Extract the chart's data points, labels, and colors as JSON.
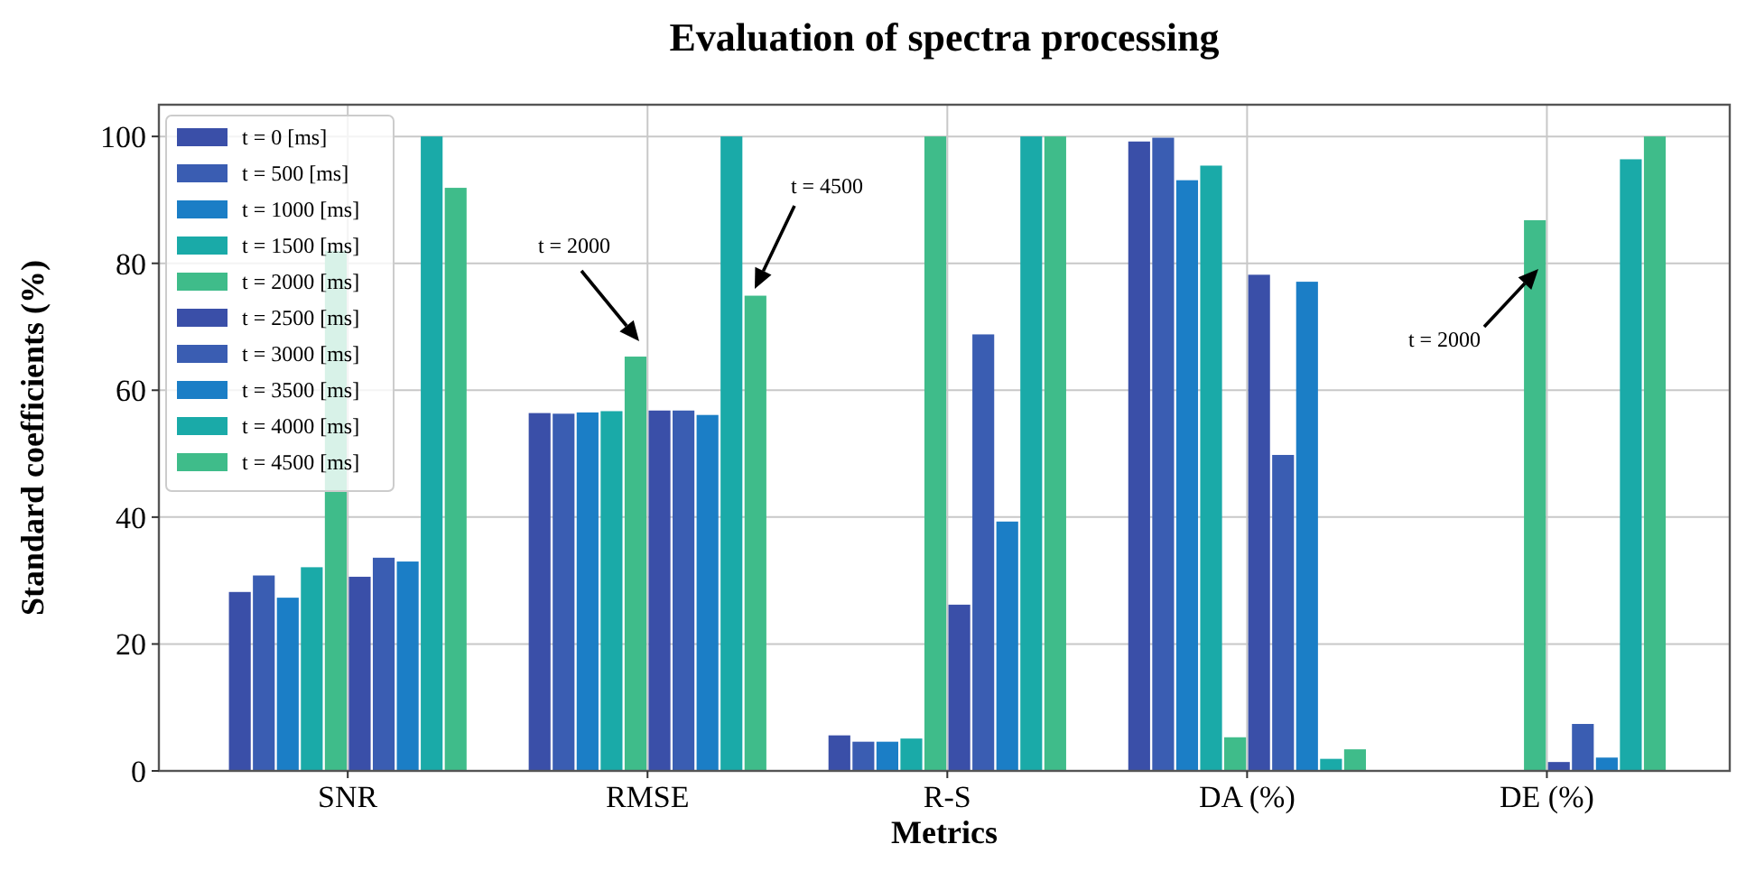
{
  "chart_data": {
    "type": "bar",
    "title": "Evaluation of spectra processing",
    "xlabel": "Metrics",
    "ylabel": "Standard coefficients (%)",
    "categories": [
      "SNR",
      "RMSE",
      "R-S",
      "DA (%)",
      "DE (%)"
    ],
    "series": [
      {
        "name": "t = 0 [ms]",
        "color": "#3a4fa8",
        "values": [
          28.2,
          56.4,
          5.6,
          99.2,
          0
        ]
      },
      {
        "name": "t = 500 [ms]",
        "color": "#3a5db2",
        "values": [
          30.8,
          56.3,
          4.6,
          99.8,
          0
        ]
      },
      {
        "name": "t = 1000 [ms]",
        "color": "#1b7ec6",
        "values": [
          27.3,
          56.5,
          4.6,
          93.1,
          0
        ]
      },
      {
        "name": "t = 1500 [ms]",
        "color": "#1aaaa8",
        "values": [
          32.1,
          56.7,
          5.1,
          95.4,
          0
        ]
      },
      {
        "name": "t = 2000 [ms]",
        "color": "#3fbc8a",
        "values": [
          82,
          65.3,
          100,
          5.3,
          86.8
        ]
      },
      {
        "name": "t = 2500 [ms]",
        "color": "#3a4fa8",
        "values": [
          30.6,
          56.8,
          26.2,
          78.2,
          1.4
        ]
      },
      {
        "name": "t = 3000 [ms]",
        "color": "#3a5db2",
        "values": [
          33.6,
          56.8,
          68.8,
          49.8,
          7.4
        ]
      },
      {
        "name": "t = 3500 [ms]",
        "color": "#1b7ec6",
        "values": [
          33.0,
          56.1,
          39.3,
          77.1,
          2.1
        ]
      },
      {
        "name": "t = 4000 [ms]",
        "color": "#1aaaa8",
        "values": [
          100,
          100,
          100,
          1.9,
          96.4
        ]
      },
      {
        "name": "t = 4500 [ms]",
        "color": "#3fbc8a",
        "values": [
          91.9,
          74.9,
          100,
          3.4,
          100
        ]
      }
    ],
    "ylim": [
      0,
      105
    ],
    "yticks": [
      0,
      20,
      40,
      60,
      80,
      100
    ],
    "grid": true,
    "legend": "top left",
    "annotations": [
      "t = 2000",
      "t = 4500",
      "t = 2000"
    ]
  }
}
